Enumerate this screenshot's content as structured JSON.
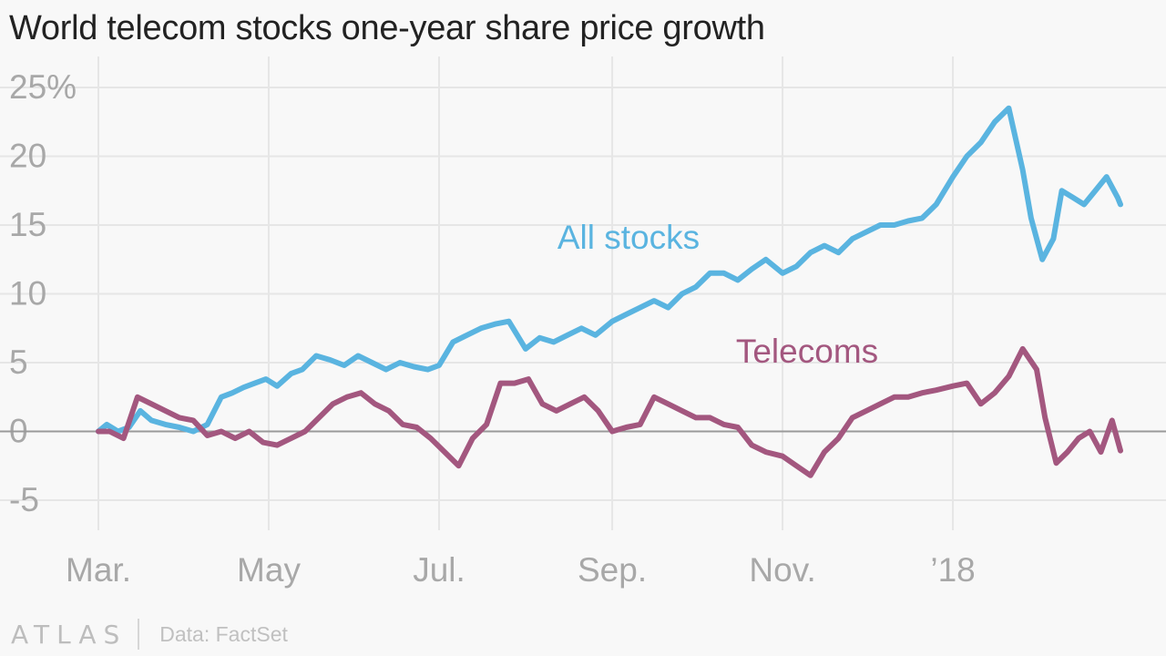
{
  "title": "World telecom stocks one-year share price growth",
  "footer": {
    "logo": "ATLAS",
    "source": "Data: FactSet"
  },
  "colors": {
    "all_stocks": "#5ab4e0",
    "telecoms": "#a3577f",
    "grid": "#e6e6e6",
    "zero_line": "#9a9a9a",
    "tick_text": "#a8a8a8"
  },
  "chart_data": {
    "type": "line",
    "title": "World telecom stocks one-year share price growth",
    "xlabel": "",
    "ylabel": "",
    "ylim": [
      -6.5,
      27
    ],
    "y_ticks": [
      25,
      20,
      15,
      10,
      5,
      0,
      -5
    ],
    "y_tick_labels": [
      "25%",
      "20",
      "15",
      "10",
      "5",
      "0",
      "-5"
    ],
    "x_range": [
      "2017-03-01",
      "2018-03-02"
    ],
    "x_ticks": [
      {
        "date": "2017-03-01",
        "label": "Mar."
      },
      {
        "date": "2017-05-01",
        "label": "May"
      },
      {
        "date": "2017-07-01",
        "label": "Jul."
      },
      {
        "date": "2017-09-01",
        "label": "Sep."
      },
      {
        "date": "2017-11-01",
        "label": "Nov."
      },
      {
        "date": "2018-01-01",
        "label": "’18"
      }
    ],
    "grid": true,
    "series": [
      {
        "name": "All stocks",
        "color": "#5ab4e0",
        "x": [
          "2017-03-01",
          "2017-03-04",
          "2017-03-08",
          "2017-03-12",
          "2017-03-16",
          "2017-03-20",
          "2017-03-25",
          "2017-03-30",
          "2017-04-04",
          "2017-04-09",
          "2017-04-14",
          "2017-04-18",
          "2017-04-22",
          "2017-04-26",
          "2017-04-30",
          "2017-05-04",
          "2017-05-09",
          "2017-05-13",
          "2017-05-18",
          "2017-05-23",
          "2017-05-28",
          "2017-06-02",
          "2017-06-07",
          "2017-06-12",
          "2017-06-17",
          "2017-06-22",
          "2017-06-27",
          "2017-07-01",
          "2017-07-06",
          "2017-07-11",
          "2017-07-16",
          "2017-07-21",
          "2017-07-26",
          "2017-08-01",
          "2017-08-06",
          "2017-08-11",
          "2017-08-16",
          "2017-08-21",
          "2017-08-26",
          "2017-09-01",
          "2017-09-06",
          "2017-09-11",
          "2017-09-16",
          "2017-09-21",
          "2017-09-26",
          "2017-10-01",
          "2017-10-06",
          "2017-10-11",
          "2017-10-16",
          "2017-10-21",
          "2017-10-26",
          "2017-11-01",
          "2017-11-06",
          "2017-11-11",
          "2017-11-16",
          "2017-11-21",
          "2017-11-26",
          "2017-12-01",
          "2017-12-06",
          "2017-12-11",
          "2017-12-16",
          "2017-12-21",
          "2017-12-26",
          "2018-01-01",
          "2018-01-06",
          "2018-01-11",
          "2018-01-16",
          "2018-01-21",
          "2018-01-26",
          "2018-01-29",
          "2018-02-02",
          "2018-02-06",
          "2018-02-09",
          "2018-02-13",
          "2018-02-17",
          "2018-02-21",
          "2018-02-25",
          "2018-03-01",
          "2018-03-02"
        ],
        "y": [
          0,
          0.5,
          0,
          0.3,
          1.5,
          0.8,
          0.5,
          0.3,
          0,
          0.5,
          2.5,
          2.8,
          3.2,
          3.5,
          3.8,
          3.3,
          4.2,
          4.5,
          5.5,
          5.2,
          4.8,
          5.5,
          5.0,
          4.5,
          5.0,
          4.7,
          4.5,
          4.8,
          6.5,
          7.0,
          7.5,
          7.8,
          8.0,
          6.0,
          6.8,
          6.5,
          7.0,
          7.5,
          7.0,
          8.0,
          8.5,
          9.0,
          9.5,
          9.0,
          10.0,
          10.5,
          11.5,
          11.5,
          11.0,
          11.8,
          12.5,
          11.5,
          12.0,
          13.0,
          13.5,
          13.0,
          14.0,
          14.5,
          15.0,
          15.0,
          15.3,
          15.5,
          16.5,
          18.5,
          20.0,
          21.0,
          22.5,
          23.5,
          19.0,
          15.5,
          12.5,
          14.0,
          17.5,
          17.0,
          16.5,
          17.5,
          18.5,
          17.0,
          16.5
        ]
      },
      {
        "name": "Telecoms",
        "color": "#a3577f",
        "x": [
          "2017-03-01",
          "2017-03-05",
          "2017-03-10",
          "2017-03-15",
          "2017-03-20",
          "2017-03-25",
          "2017-03-30",
          "2017-04-04",
          "2017-04-09",
          "2017-04-14",
          "2017-04-19",
          "2017-04-24",
          "2017-04-29",
          "2017-05-04",
          "2017-05-09",
          "2017-05-14",
          "2017-05-19",
          "2017-05-24",
          "2017-05-29",
          "2017-06-03",
          "2017-06-08",
          "2017-06-13",
          "2017-06-18",
          "2017-06-23",
          "2017-06-28",
          "2017-07-03",
          "2017-07-08",
          "2017-07-13",
          "2017-07-18",
          "2017-07-23",
          "2017-07-28",
          "2017-08-02",
          "2017-08-07",
          "2017-08-12",
          "2017-08-17",
          "2017-08-22",
          "2017-08-27",
          "2017-09-01",
          "2017-09-06",
          "2017-09-11",
          "2017-09-16",
          "2017-09-21",
          "2017-09-26",
          "2017-10-01",
          "2017-10-06",
          "2017-10-11",
          "2017-10-16",
          "2017-10-21",
          "2017-10-26",
          "2017-11-01",
          "2017-11-06",
          "2017-11-11",
          "2017-11-16",
          "2017-11-21",
          "2017-11-26",
          "2017-12-01",
          "2017-12-06",
          "2017-12-11",
          "2017-12-16",
          "2017-12-21",
          "2017-12-26",
          "2018-01-01",
          "2018-01-06",
          "2018-01-11",
          "2018-01-16",
          "2018-01-21",
          "2018-01-26",
          "2018-01-31",
          "2018-02-03",
          "2018-02-07",
          "2018-02-11",
          "2018-02-15",
          "2018-02-19",
          "2018-02-23",
          "2018-02-27",
          "2018-03-02"
        ],
        "y": [
          0,
          0,
          -0.5,
          2.5,
          2.0,
          1.5,
          1.0,
          0.8,
          -0.3,
          0,
          -0.5,
          0,
          -0.8,
          -1.0,
          -0.5,
          0,
          1.0,
          2.0,
          2.5,
          2.8,
          2.0,
          1.5,
          0.5,
          0.3,
          -0.5,
          -1.5,
          -2.5,
          -0.5,
          0.5,
          3.5,
          3.5,
          3.8,
          2.0,
          1.5,
          2.0,
          2.5,
          1.5,
          0,
          0.3,
          0.5,
          2.5,
          2.0,
          1.5,
          1.0,
          1.0,
          0.5,
          0.3,
          -1.0,
          -1.5,
          -1.8,
          -2.5,
          -3.2,
          -1.5,
          -0.5,
          1.0,
          1.5,
          2.0,
          2.5,
          2.5,
          2.8,
          3.0,
          3.3,
          3.5,
          2.0,
          2.8,
          4.0,
          6.0,
          4.5,
          1.0,
          -2.3,
          -1.5,
          -0.5,
          0,
          -1.5,
          0.8,
          -1.4
        ]
      }
    ],
    "annotations": [
      {
        "text": "All stocks",
        "color": "#5ab4e0"
      },
      {
        "text": "Telecoms",
        "color": "#a3577f"
      }
    ]
  }
}
